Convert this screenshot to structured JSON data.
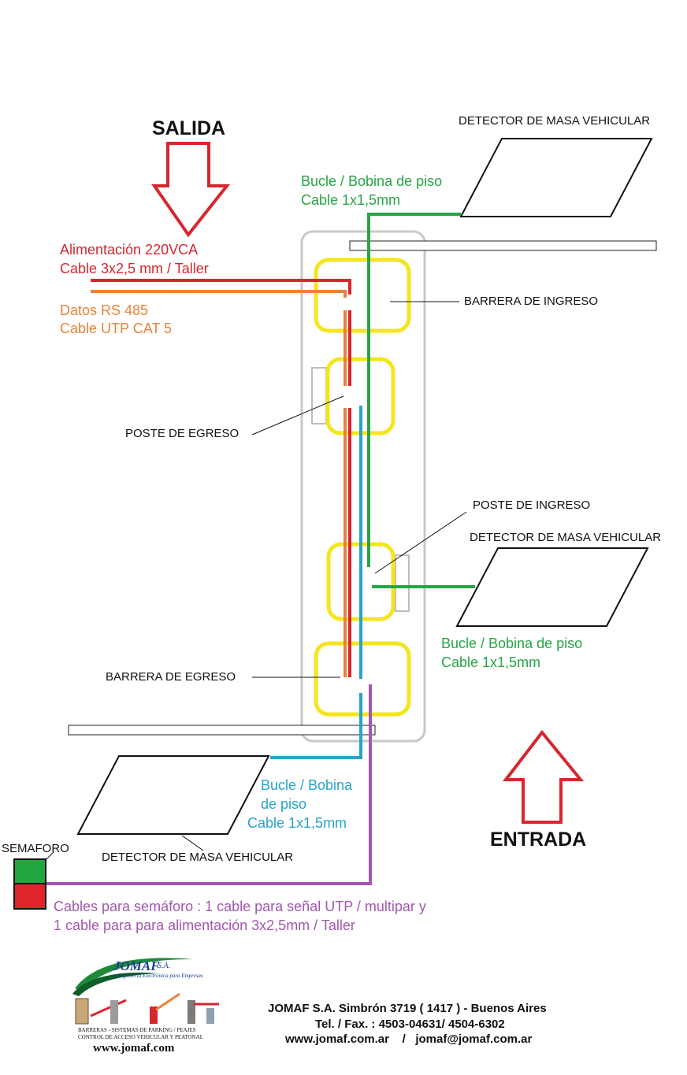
{
  "headings": {
    "salida": "SALIDA",
    "entrada": "ENTRADA"
  },
  "power": {
    "line1": "Alimentación 220VCA",
    "line2": "Cable 3x2,5 mm / Taller"
  },
  "data": {
    "line1": "Datos RS 485",
    "line2": "Cable UTP CAT 5"
  },
  "labels": {
    "detector_top": "DETECTOR DE MASA VEHICULAR",
    "detector_mid": "DETECTOR DE MASA VEHICULAR",
    "detector_bottom": "DETECTOR DE MASA VEHICULAR",
    "barrera_ingreso": "BARRERA DE INGRESO",
    "poste_egreso": "POSTE DE EGRESO",
    "poste_ingreso": "POSTE DE INGRESO",
    "barrera_egreso": "BARRERA DE EGRESO",
    "semaforo": "SEMAFORO"
  },
  "loops": {
    "top": {
      "line1": "Bucle / Bobina de piso",
      "line2": "Cable 1x1,5mm"
    },
    "mid": {
      "line1": "Bucle / Bobina de piso",
      "line2": "Cable 1x1,5mm"
    },
    "bottom": {
      "line1": "Bucle / Bobina",
      "line2": "de piso",
      "line3": "Cable 1x1,5mm"
    }
  },
  "semaforo_cables": {
    "line1": "Cables para semáforo : 1 cable para señal UTP / multipar y",
    "line2": "1 cable para para alimentación 3x2,5mm / Taller"
  },
  "logo": {
    "name": "JOMAF",
    "suffix": "S.A.",
    "tagline": "Ingeniería Electrónica para Empresas",
    "caption1": "BARRERAS  -  SISTEMAS DE PARKING  /  PEAJES",
    "caption2": "CONTROL DE ACCESO VEHICULAR Y PEATONAL",
    "web": "www.jomaf.com"
  },
  "footer": {
    "line1": "JOMAF S.A. Simbrón 3719 ( 1417 ) - Buenos Aires",
    "line2": "Tel. / Fax. : 4503-04631/ 4504-6302",
    "line3": "www.jomaf.com.ar    /   jomaf@jomaf.com.ar"
  },
  "colors": {
    "power": "#d7262e",
    "data": "#e8823a",
    "loop_green": "#27a546",
    "loop_blue": "#28a3cc",
    "semaforo_cable": "#a456b2",
    "post_outline": "#f5e51f",
    "island_outline": "#c8c8c8",
    "semaforo_green": "#22a63f",
    "semaforo_red": "#e0262a"
  }
}
